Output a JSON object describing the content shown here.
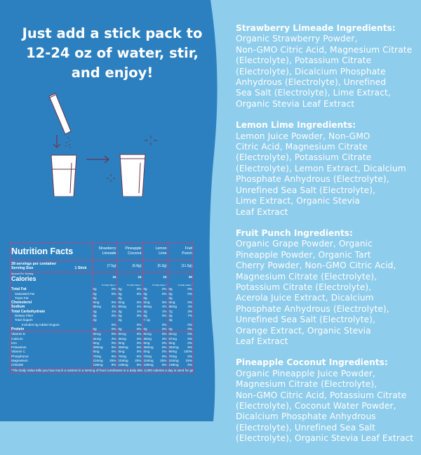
{
  "colors": {
    "left_panel": "#2d80bf",
    "right_panel": "#8fcdec",
    "nutrition_border": "#b04a86",
    "illustration_stroke": "#6a3450"
  },
  "headline": [
    "Just add a stick pack to",
    "12-24 oz of water, stir,",
    "and enjoy!"
  ],
  "ingredients": [
    {
      "title": "Strawberry Limeade Ingredients:",
      "lines": [
        "Organic Strawberry Powder,",
        "Non-GMO Citric Acid, Magnesium Citrate",
        "(Electrolyte), Potassium Citrate",
        "(Electrolyte), Dicalcium Phosphate",
        "Anhydrous (Electrolyte), Unrefined",
        "Sea Salt (Electrolyte), Lime Extract,",
        "Organic Stevia Leaf Extract"
      ]
    },
    {
      "title": "Lemon Lime Ingredients:",
      "lines": [
        "Lemon Juice Powder, Non-GMO",
        "Citric Acid, Magnesium Citrate",
        "(Electrolyte), Potassium Citrate",
        "(Electrolyte), Lemon Extract, Dicalcium",
        "Phosphate Anhydrous (Electrolyte),",
        "Unrefined Sea Salt (Electrolyte),",
        "Lime Extract, Organic Stevia",
        "Leaf Extract"
      ]
    },
    {
      "title": "Fruit Punch Ingredients:",
      "lines": [
        "Organic Grape Powder, Organic",
        "Pineapple Powder, Organic Tart",
        "Cherry Powder, Non-GMO Citric Acid,",
        "Magnesium Citrate (Electrolyte),",
        "Potassium Citrate (Electrolyte),",
        "Acerola Juice Extract, Dicalcium",
        "Phosphate Anhydrous (Electrolyte),",
        "Unrefined Sea Salt (Electrolyte),",
        "Orange Extract, Organic Stevia",
        "Leaf Extract"
      ]
    },
    {
      "title": "Pineapple Coconut Ingredients:",
      "lines": [
        "Organic Pineapple Juice Powder,",
        "Magnesium Citrate (Electrolyte),",
        "Non-GMO Citric Acid, Potassium Citrate",
        "(Electrolyte), Coconut Water Powder,",
        "Dicalcium Phosphate Anhydrous",
        "(Electrolyte), Unrefined Sea Salt",
        "(Electrolyte), Organic Stevia Leaf Extract"
      ]
    }
  ],
  "nutrition": {
    "title": "Nutrition Facts",
    "servings": "28 servings per container",
    "serving_size_label": "Serving Size",
    "serving_size_value": "1 Stick",
    "amount_per_serving": "Amount Per Serving",
    "calories_label": "Calories",
    "dv_label": "% Daily Value *",
    "products": [
      {
        "name": [
          "Strawberry",
          "Limeade"
        ],
        "serving": "(7.5g)",
        "calories": "15"
      },
      {
        "name": [
          "Pineapple",
          "Coconut"
        ],
        "serving": "(6.8g)",
        "calories": "15"
      },
      {
        "name": [
          "Lemon",
          "Lime"
        ],
        "serving": "(6.3g)",
        "calories": "10"
      },
      {
        "name": [
          "Fruit",
          "Punch"
        ],
        "serving": "(11.5g)",
        "calories": "30"
      }
    ],
    "macros": [
      {
        "label": "Total Fat",
        "style": "bold",
        "values": [
          [
            "0g",
            "0%"
          ],
          [
            "0g",
            "0%"
          ],
          [
            "0g",
            "0%"
          ],
          [
            "0g",
            "0%"
          ]
        ]
      },
      {
        "label": "Saturated Fat",
        "style": "ind1",
        "values": [
          [
            "0g",
            "0%"
          ],
          [
            "0g",
            "0%"
          ],
          [
            "0g",
            "0%"
          ],
          [
            "0g",
            "0%"
          ]
        ]
      },
      {
        "label": "Trans Fat",
        "style": "ind1",
        "values": [
          [
            "0g",
            ""
          ],
          [
            "0g",
            ""
          ],
          [
            "0g",
            ""
          ],
          [
            "0g",
            ""
          ]
        ]
      },
      {
        "label": "Cholesterol",
        "style": "bold",
        "values": [
          [
            "0mg",
            "0%"
          ],
          [
            "0mg",
            "0%"
          ],
          [
            "0mg",
            "0%"
          ],
          [
            "0mg",
            "0%"
          ]
        ]
      },
      {
        "label": "Sodium",
        "style": "bold",
        "values": [
          [
            "85mg",
            "4%"
          ],
          [
            "85mg",
            "4%"
          ],
          [
            "85mg",
            "4%"
          ],
          [
            "85mg",
            "4%"
          ]
        ]
      },
      {
        "label": "Total Carbohydrate",
        "style": "bold",
        "values": [
          [
            "4g",
            "1%"
          ],
          [
            "3g",
            "1%"
          ],
          [
            "2g",
            "1%"
          ],
          [
            "7g",
            "3%"
          ]
        ]
      },
      {
        "label": "Dietary Fiber",
        "style": "ind1",
        "values": [
          [
            "0g",
            "0%"
          ],
          [
            "0g",
            "0%"
          ],
          [
            "0g",
            "0%"
          ],
          [
            "2g",
            "7%"
          ]
        ]
      },
      {
        "label": "Total Sugars",
        "style": "ind1",
        "values": [
          [
            "2g",
            ""
          ],
          [
            "2g",
            ""
          ],
          [
            "< 1g",
            ""
          ],
          [
            "4g",
            ""
          ]
        ]
      },
      {
        "label": "Includes 0g Added Sugars",
        "style": "ind2",
        "values": [
          [
            "",
            "0%"
          ],
          [
            "",
            "0%"
          ],
          [
            "",
            "0%"
          ],
          [
            "",
            "0%"
          ]
        ]
      },
      {
        "label": "Protein",
        "style": "bold",
        "values": [
          [
            "0g",
            "0%"
          ],
          [
            "0g",
            "0%"
          ],
          [
            "0g",
            "0%"
          ],
          [
            "0g",
            "0%"
          ]
        ]
      }
    ],
    "micros": [
      {
        "label": "Vitamin D",
        "values": [
          [
            "0mcg",
            "0%"
          ],
          [
            "0mcg",
            "0%"
          ],
          [
            "0mcg",
            "0%"
          ],
          [
            "0mcg",
            "0%"
          ]
        ]
      },
      {
        "label": "Calcium",
        "values": [
          [
            "34mg",
            "2%"
          ],
          [
            "35mg",
            "2%"
          ],
          [
            "36mg",
            "2%"
          ],
          [
            "87mg",
            "6%"
          ]
        ]
      },
      {
        "label": "Iron",
        "values": [
          [
            "0mg",
            "0%"
          ],
          [
            "0mg",
            "0%"
          ],
          [
            "0mg",
            "0%"
          ],
          [
            "0mg",
            "0%"
          ]
        ]
      },
      {
        "label": "Potassium",
        "values": [
          [
            "300mg",
            "6%"
          ],
          [
            "250mg",
            "6%"
          ],
          [
            "250mg",
            "6%"
          ],
          [
            "262mg",
            "6%"
          ]
        ]
      },
      {
        "label": "Vitamin C",
        "values": [
          [
            "0mg",
            "0%"
          ],
          [
            "0mg",
            "0%"
          ],
          [
            "0mg",
            "0%"
          ],
          [
            "90mg",
            "100%"
          ]
        ]
      },
      {
        "label": "Phosphorus",
        "values": [
          [
            "70mg",
            "6%"
          ],
          [
            "70mg",
            "6%"
          ],
          [
            "70mg",
            "6%"
          ],
          [
            "70mg",
            "6%"
          ]
        ]
      },
      {
        "label": "Magnesium",
        "values": [
          [
            "104mg",
            "25%"
          ],
          [
            "104mg",
            "25%"
          ],
          [
            "104mg",
            "25%"
          ],
          [
            "104mg",
            "25%"
          ]
        ]
      },
      {
        "label": "Chloride",
        "values": [
          [
            "136mg",
            "6%"
          ],
          [
            "136mg",
            "6%"
          ],
          [
            "136mg",
            "6%"
          ],
          [
            "136mg",
            "6%"
          ]
        ]
      }
    ],
    "footnote": "*The Daily Value tells you how much a nutrient in a serving of food contributes to a daily diet. 2,000 calories a day is used for general nutrition advice."
  }
}
